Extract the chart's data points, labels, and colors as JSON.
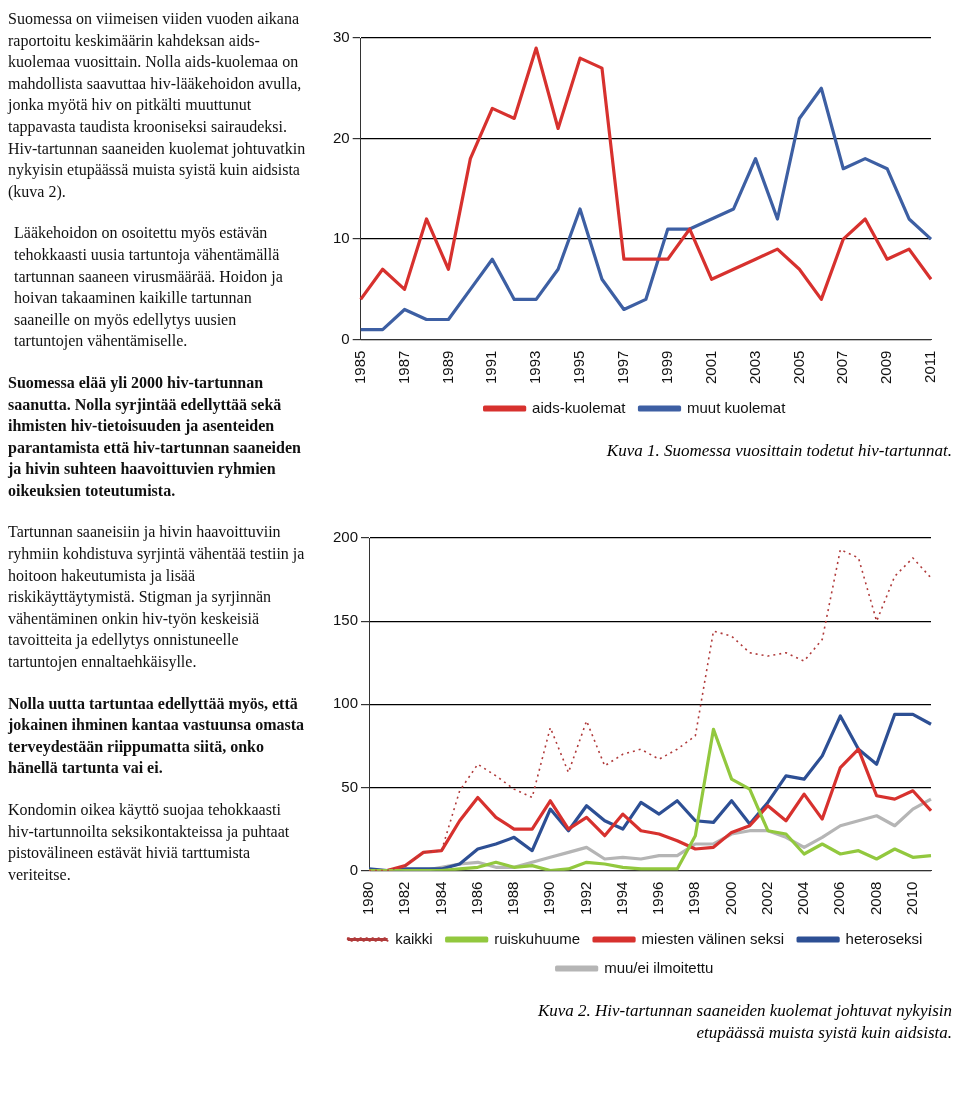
{
  "chart_data": [
    {
      "type": "other",
      "annotations": [
        "Suomessa on viimeisen viiden vuoden aikana raportoitu keskimäärin kahdeksan aids-kuolemaa vuosittain. Nolla aids-kuolemaa on mahdollista saavuttaa hiv-lääkehoidon avulla, jonka myötä hiv on pitkälti muuttunut tappavasta taudista krooniseksi sairaudeksi. Hiv-tartunnan saaneiden kuolemat johtuvatkin nykyisin etupäässä muista syistä kuin aidsista (kuva 2).",
        "Lääkehoidon on osoitettu myös estävän tehokkaasti uusia tartuntoja vähentämällä tartunnan saaneen virusmäärää. Hoidon ja hoivan takaaminen kaikille tartunnan saaneille on myös edellytys uusien tartuntojen vähentämiselle.",
        "Suomessa elää yli 2000 hiv-tartunnan saanutta. Nolla syrjintää edellyttää sekä ihmisten hiv-tietoisuuden ja asenteiden parantamista että hiv-tartunnan saaneiden ja hivin suhteen haavoittuvien ryhmien oikeuksien toteutumista.",
        "Tartunnan saaneisiin ja hivin haavoittuviin ryhmiin kohdistuva syrjintä vähentää testiin ja hoitoon hakeutumista ja lisää riskikäyttäytymistä. Stigman ja syrjinnän vähentäminen onkin hiv-työn keskeisiä tavoitteita ja edellytys onnistuneelle tartuntojen ennaltaehkäisylle.",
        "Nolla uutta tartuntaa edellyttää myös, että jokainen ihminen kantaa vastuunsa omasta terveydestään riippumatta siitä, onko hänellä tartunta vai ei.",
        "Kondomin oikea käyttö suojaa tehokkaasti hiv-tartunnoilta seksikontakteissa ja puhtaat pistovälineen estävät hiviä tarttumista veriteitse."
      ]
    },
    {
      "type": "line",
      "annotations": [
        "Kuva 1. Suomessa vuosittain todetut hiv-tartunnat."
      ],
      "categories": [
        "1985",
        null,
        "1987",
        null,
        "1989",
        null,
        "1991",
        null,
        "1993",
        null,
        "1995",
        null,
        "1997",
        null,
        "1999",
        null,
        "2001",
        null,
        "2003",
        null,
        "2005",
        null,
        "2007",
        null,
        "2009",
        null,
        "2011"
      ],
      "series": [
        {
          "name": "aids-kuolemat",
          "color": "#d7312e",
          "values": [
            4,
            7,
            5,
            12,
            7,
            18,
            23,
            22,
            29,
            21,
            28,
            27,
            8,
            8,
            8,
            11,
            6,
            7,
            8,
            9,
            7,
            4,
            10,
            12,
            8,
            9,
            6
          ]
        },
        {
          "name": "muut kuolemat",
          "color": "#3d5fa3",
          "values": [
            1,
            1,
            3,
            2,
            2,
            5,
            8,
            4,
            4,
            7,
            13,
            6,
            3,
            4,
            11,
            11,
            12,
            13,
            18,
            12,
            22,
            25,
            17,
            18,
            17,
            12,
            10
          ]
        }
      ],
      "ylim": [
        0,
        30
      ],
      "yticks": [
        0,
        10,
        20,
        30
      ],
      "grid": "y",
      "legend": "bottom",
      "marker": "none",
      "line_style": "solid"
    },
    {
      "type": "line",
      "annotations": [
        "Kuva 2. Hiv-tartunnan saaneiden kuolemat johtuvat nykyisin etupäässä muista syistä kuin aidsista."
      ],
      "categories": [
        "1980",
        null,
        "1982",
        null,
        "1984",
        null,
        "1986",
        null,
        "1988",
        null,
        "1990",
        null,
        "1992",
        null,
        "1994",
        null,
        "1996",
        null,
        "1998",
        null,
        "2000",
        null,
        "2002",
        null,
        "2004",
        null,
        "2006",
        null,
        "2008",
        null,
        "2010",
        null
      ],
      "series": [
        {
          "name": "kaikki",
          "color": "#b03a3a",
          "line_style": "dotted",
          "values": [
            0,
            0,
            3,
            11,
            12,
            48,
            64,
            57,
            49,
            44,
            86,
            59,
            90,
            63,
            70,
            73,
            67,
            73,
            81,
            144,
            141,
            131,
            129,
            131,
            126,
            139,
            193,
            188,
            150,
            177,
            188,
            176
          ]
        },
        {
          "name": "ruiskuhuume",
          "color": "#92c83e",
          "values": [
            0,
            0,
            0,
            0,
            0,
            1,
            2,
            5,
            2,
            3,
            0,
            1,
            5,
            4,
            2,
            1,
            1,
            1,
            21,
            85,
            55,
            49,
            24,
            22,
            10,
            16,
            10,
            12,
            7,
            13,
            8,
            9
          ]
        },
        {
          "name": "miesten välinen seksi",
          "color": "#d7312e",
          "values": [
            0,
            0,
            3,
            11,
            12,
            30,
            44,
            32,
            25,
            25,
            42,
            25,
            32,
            21,
            34,
            24,
            22,
            18,
            13,
            14,
            23,
            27,
            39,
            30,
            46,
            31,
            62,
            73,
            45,
            43,
            48,
            36
          ]
        },
        {
          "name": "heteroseksi",
          "color": "#2d4f94",
          "values": [
            1,
            0,
            1,
            1,
            1,
            4,
            13,
            16,
            20,
            12,
            37,
            24,
            39,
            30,
            25,
            41,
            34,
            42,
            30,
            29,
            42,
            28,
            41,
            57,
            55,
            69,
            93,
            73,
            64,
            94,
            94,
            88
          ]
        },
        {
          "name": "muu/ei ilmoitettu",
          "color": "#b5b5b5",
          "values": [
            0,
            0,
            0,
            0,
            2,
            4,
            5,
            2,
            2,
            5,
            8,
            11,
            14,
            7,
            8,
            7,
            9,
            9,
            16,
            16,
            22,
            24,
            24,
            20,
            14,
            20,
            27,
            30,
            33,
            27,
            37,
            43
          ]
        }
      ],
      "ylim": [
        0,
        200
      ],
      "yticks": [
        0,
        50,
        100,
        150,
        200
      ],
      "grid": "y",
      "legend": "bottom",
      "marker": "none",
      "line_style": "solid"
    }
  ]
}
